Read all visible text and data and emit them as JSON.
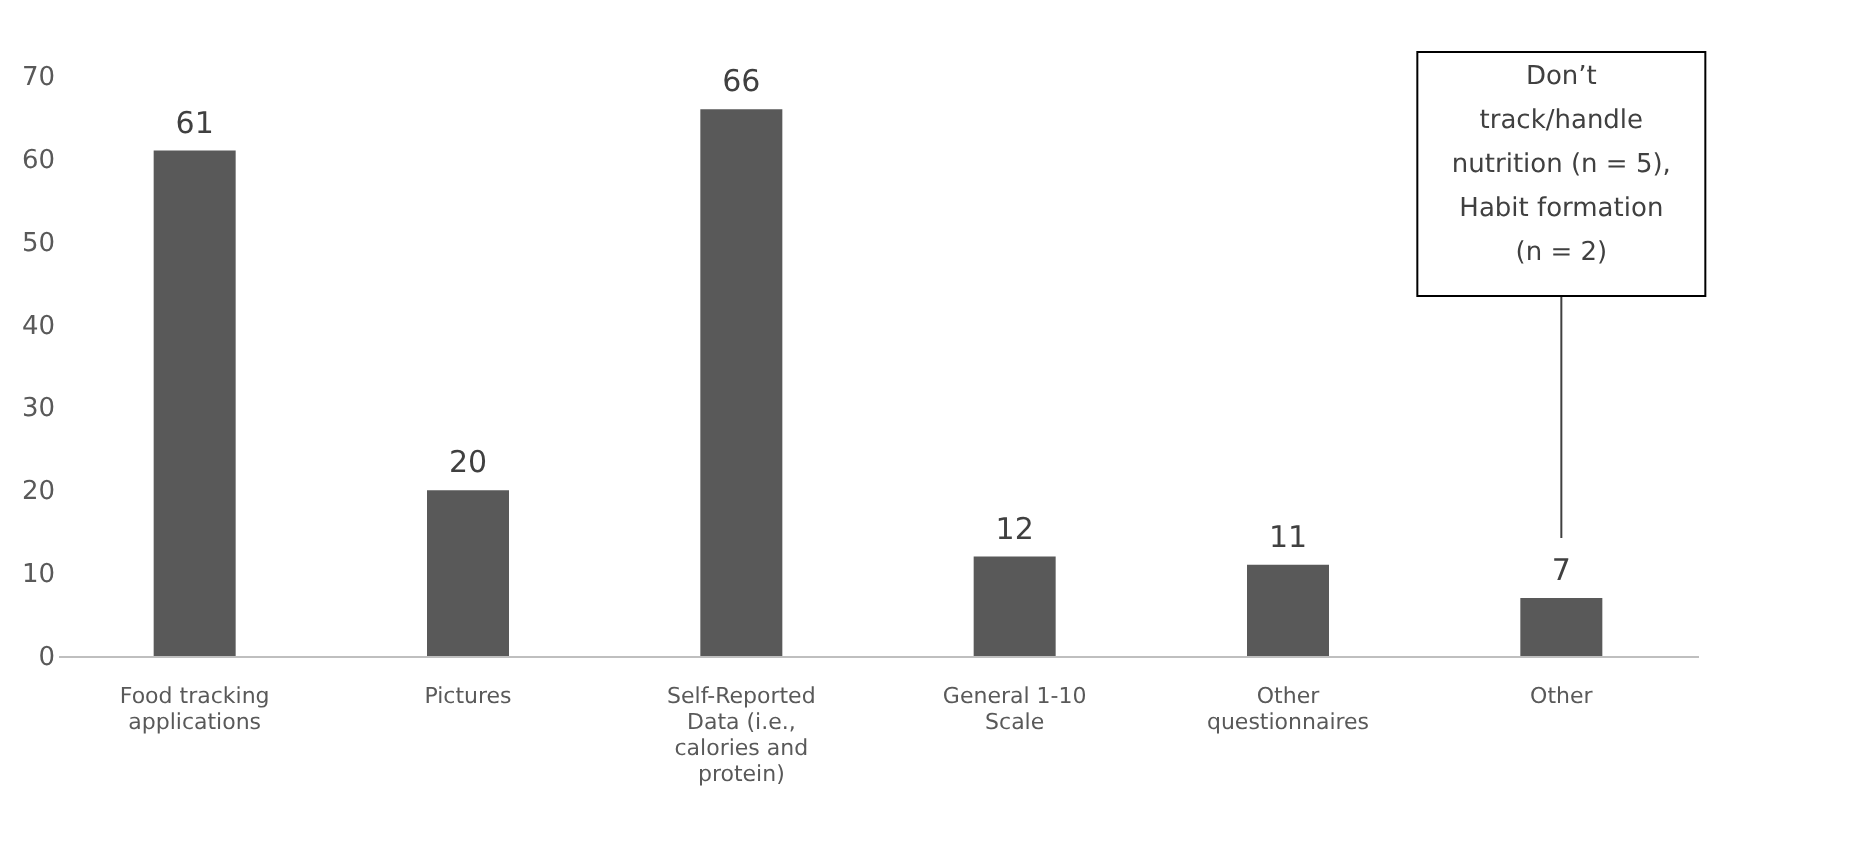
{
  "chart_data": {
    "type": "bar",
    "categories": [
      "Food tracking applications",
      "Pictures",
      "Self-Reported Data (i.e., calories and protein)",
      "General 1-10 Scale",
      "Other questionnaires",
      "Other"
    ],
    "values": [
      61,
      20,
      66,
      12,
      11,
      7
    ],
    "color": "#595959",
    "ylim": [
      0,
      70
    ],
    "yticks": [
      0,
      10,
      20,
      30,
      40,
      50,
      60,
      70
    ],
    "grid": false,
    "data_labels": true,
    "annotations": [
      "Don’t\ntrack/handle\nnutrition (n = 5),\nHabit formation\n(n = 2)"
    ]
  }
}
